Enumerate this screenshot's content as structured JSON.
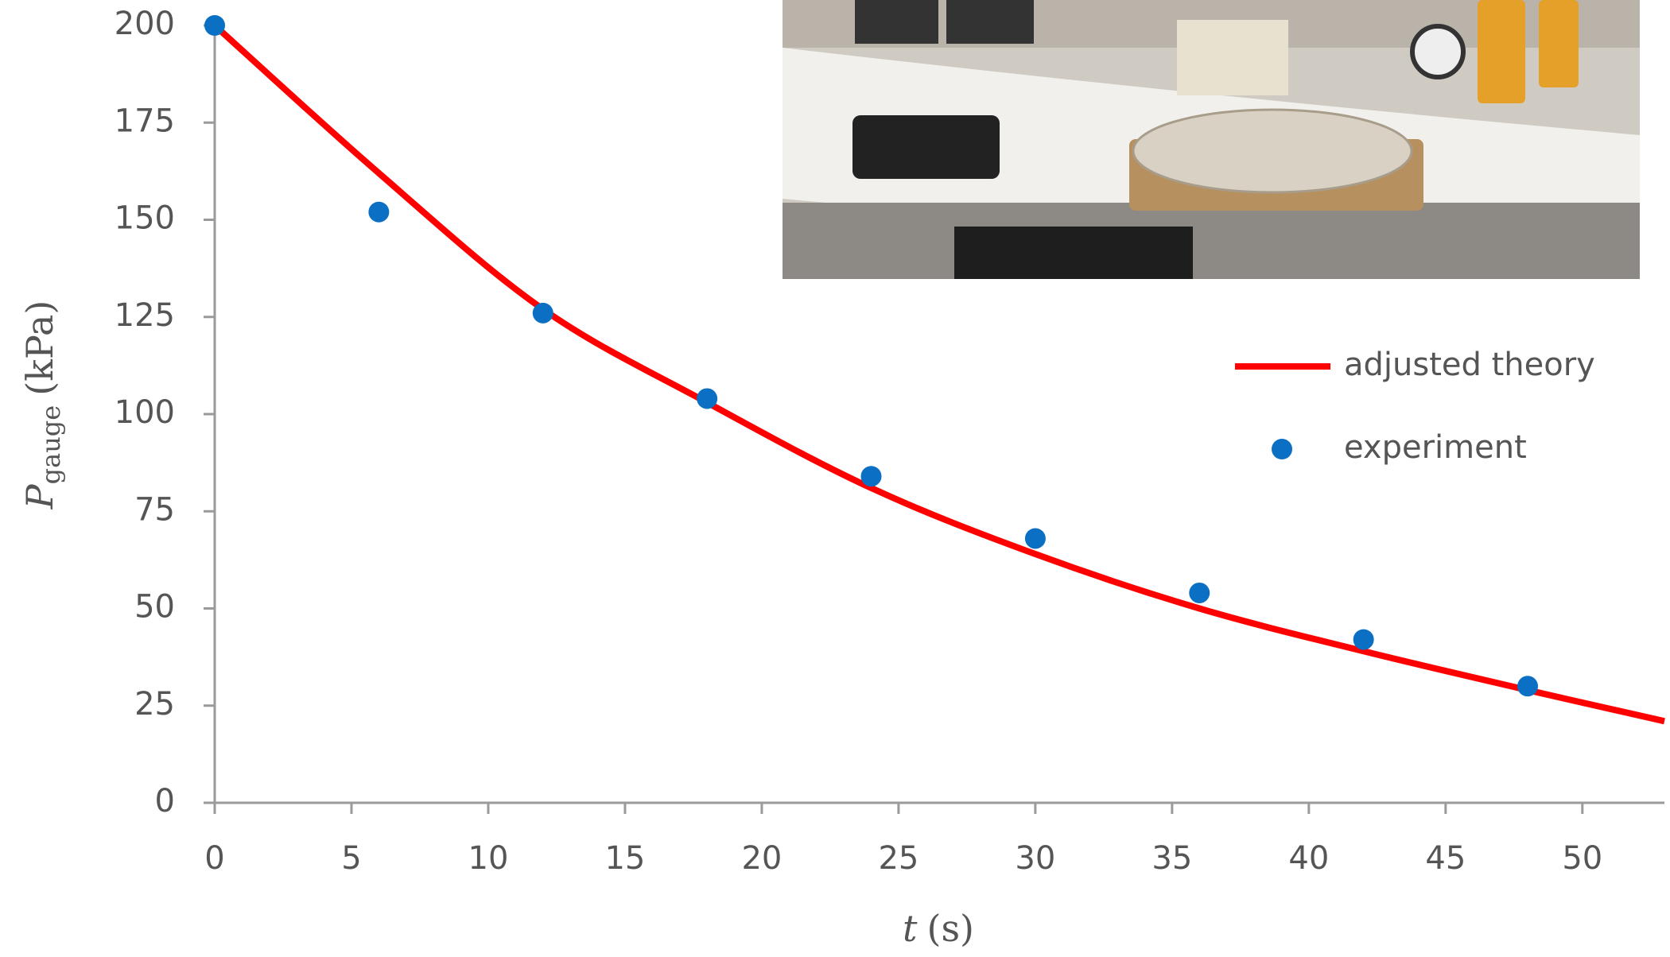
{
  "chart_data": {
    "type": "scatter",
    "x_label": {
      "symbol": "t",
      "unit": "(s)"
    },
    "y_label": {
      "symbol": "P",
      "subscript": "gauge",
      "unit": "(kPa)"
    },
    "xlim": [
      0,
      53
    ],
    "ylim": [
      0,
      200
    ],
    "xticks": [
      0,
      5,
      10,
      15,
      20,
      25,
      30,
      35,
      40,
      45,
      50
    ],
    "yticks": [
      0,
      25,
      50,
      75,
      100,
      125,
      150,
      175,
      200
    ],
    "legend": "right",
    "series": [
      {
        "name": "adjusted theory",
        "kind": "line",
        "color": "#ff0000",
        "x": [
          0,
          6,
          12,
          18,
          24,
          30,
          36,
          42,
          48,
          53
        ],
        "values": [
          200,
          162,
          127,
          103,
          81,
          64,
          50,
          39,
          29,
          21
        ]
      },
      {
        "name": "experiment",
        "kind": "scatter",
        "color": "#0b6fc3",
        "x": [
          0,
          6,
          12,
          18,
          24,
          30,
          36,
          42,
          48
        ],
        "values": [
          200,
          152,
          126,
          104,
          84,
          68,
          54,
          42,
          30
        ]
      }
    ]
  }
}
